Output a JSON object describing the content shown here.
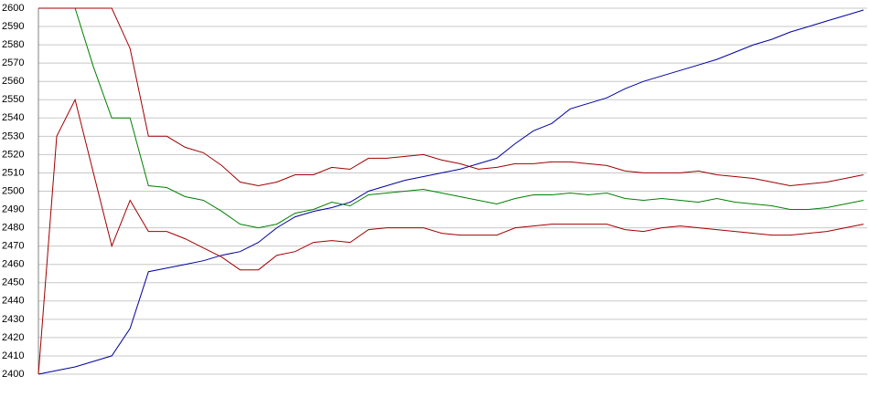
{
  "chart_data": {
    "type": "line",
    "ylim": [
      2400,
      2600
    ],
    "yticks": [
      2400,
      2410,
      2420,
      2430,
      2440,
      2450,
      2460,
      2470,
      2480,
      2490,
      2500,
      2510,
      2520,
      2530,
      2540,
      2550,
      2560,
      2570,
      2580,
      2590,
      2600
    ],
    "grid": true,
    "series": [
      {
        "color": "#0000a0",
        "values": [
          2400,
          2402,
          2404,
          2407,
          2410,
          2425,
          2456,
          2458,
          2460,
          2462,
          2465,
          2467,
          2472,
          2480,
          2486,
          2489,
          2491,
          2494,
          2500,
          2503,
          2506,
          2508,
          2510,
          2512,
          2515,
          2518,
          2526,
          2533,
          2537,
          2545,
          2548,
          2551,
          2556,
          2560,
          2563,
          2566,
          2569,
          2572,
          2576,
          2580,
          2583,
          2587,
          2590,
          2593,
          2596,
          2599
        ]
      },
      {
        "color": "#008000",
        "values": [
          2600,
          2600,
          2600,
          2568,
          2540,
          2540,
          2503,
          2502,
          2497,
          2495,
          2489,
          2482,
          2480,
          2482,
          2488,
          2490,
          2494,
          2492,
          2498,
          2499,
          2500,
          2501,
          2499,
          2497,
          2495,
          2493,
          2496,
          2498,
          2498,
          2499,
          2498,
          2499,
          2496,
          2495,
          2496,
          2495,
          2494,
          2496,
          2494,
          2493,
          2492,
          2490,
          2490,
          2491,
          2493,
          2495
        ]
      },
      {
        "color": "#a00000",
        "values": [
          2600,
          2600,
          2600,
          2600,
          2600,
          2578,
          2530,
          2530,
          2524,
          2521,
          2514,
          2505,
          2503,
          2505,
          2509,
          2509,
          2513,
          2512,
          2518,
          2518,
          2519,
          2520,
          2517,
          2515,
          2512,
          2513,
          2515,
          2515,
          2516,
          2516,
          2515,
          2514,
          2511,
          2510,
          2510,
          2510,
          2511,
          2509,
          2508,
          2507,
          2505,
          2503,
          2504,
          2505,
          2507,
          2509
        ]
      },
      {
        "color": "#a00000",
        "values": [
          2400,
          2530,
          2550,
          2510,
          2470,
          2495,
          2478,
          2478,
          2474,
          2469,
          2464,
          2457,
          2457,
          2465,
          2467,
          2472,
          2473,
          2472,
          2479,
          2480,
          2480,
          2480,
          2477,
          2476,
          2476,
          2476,
          2480,
          2481,
          2482,
          2482,
          2482,
          2482,
          2479,
          2478,
          2480,
          2481,
          2480,
          2479,
          2478,
          2477,
          2476,
          2476,
          2477,
          2478,
          2480,
          2482
        ]
      }
    ]
  }
}
